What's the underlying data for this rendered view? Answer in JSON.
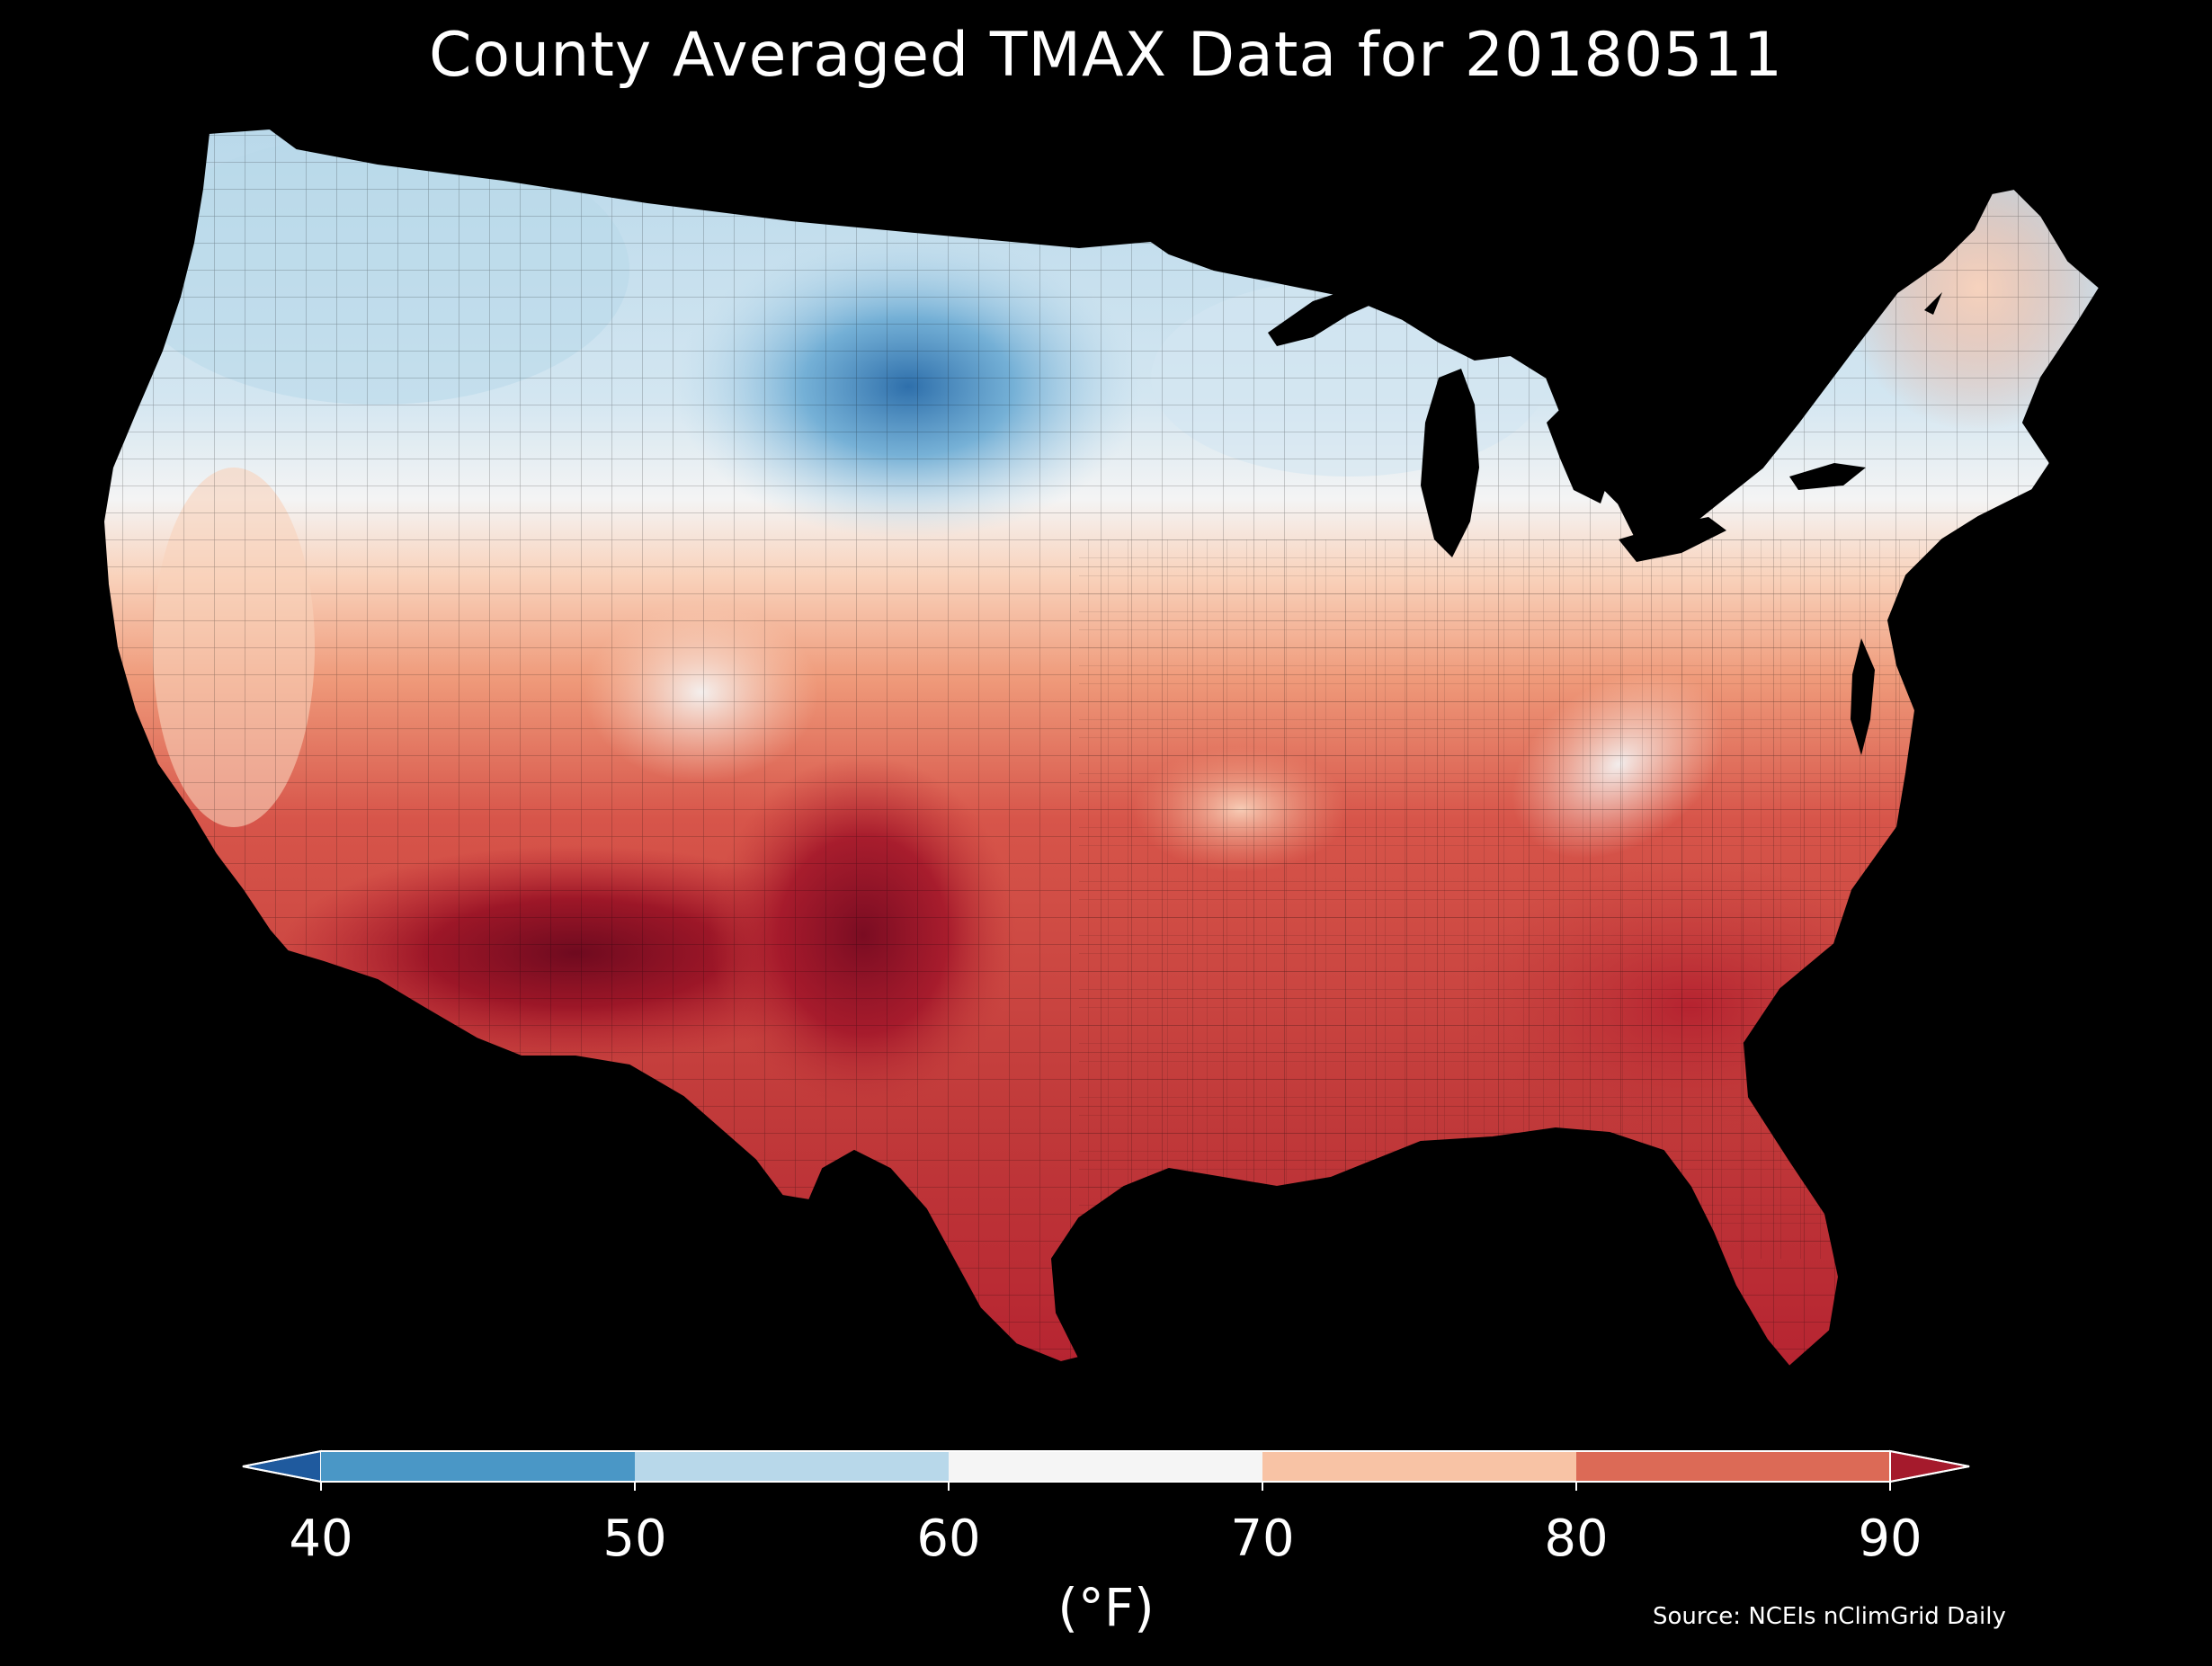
{
  "title": "County Averaged TMAX Data for 20180511",
  "source": "Source: NCEIs nClimGrid Daily",
  "colorbar": {
    "units": "(°F)",
    "ticks": [
      "40",
      "50",
      "60",
      "70",
      "80",
      "90"
    ],
    "bins": [
      {
        "from": 40,
        "to": 50,
        "color": "#4a97c6"
      },
      {
        "from": 50,
        "to": 60,
        "color": "#b8d8ea"
      },
      {
        "from": 60,
        "to": 70,
        "color": "#f5f5f5"
      },
      {
        "from": 70,
        "to": 80,
        "color": "#f8c3a5"
      },
      {
        "from": 80,
        "to": 90,
        "color": "#dc6a56"
      }
    ],
    "under_color": "#1f5a9e",
    "over_color": "#a51a2c",
    "extend": "both"
  },
  "map": {
    "region": "contiguous-united-states",
    "variable": "TMAX",
    "unit": "°F",
    "palette": {
      "coldest": "#2e6fab",
      "cold": "#6aaad3",
      "cool": "#b8d8ea",
      "mild": "#f4f4f4",
      "warm": "#f9d2bb",
      "warmer": "#ef9a7a",
      "hot": "#d7554a",
      "hotter": "#b52230",
      "hottest": "#6f0a1f"
    }
  }
}
